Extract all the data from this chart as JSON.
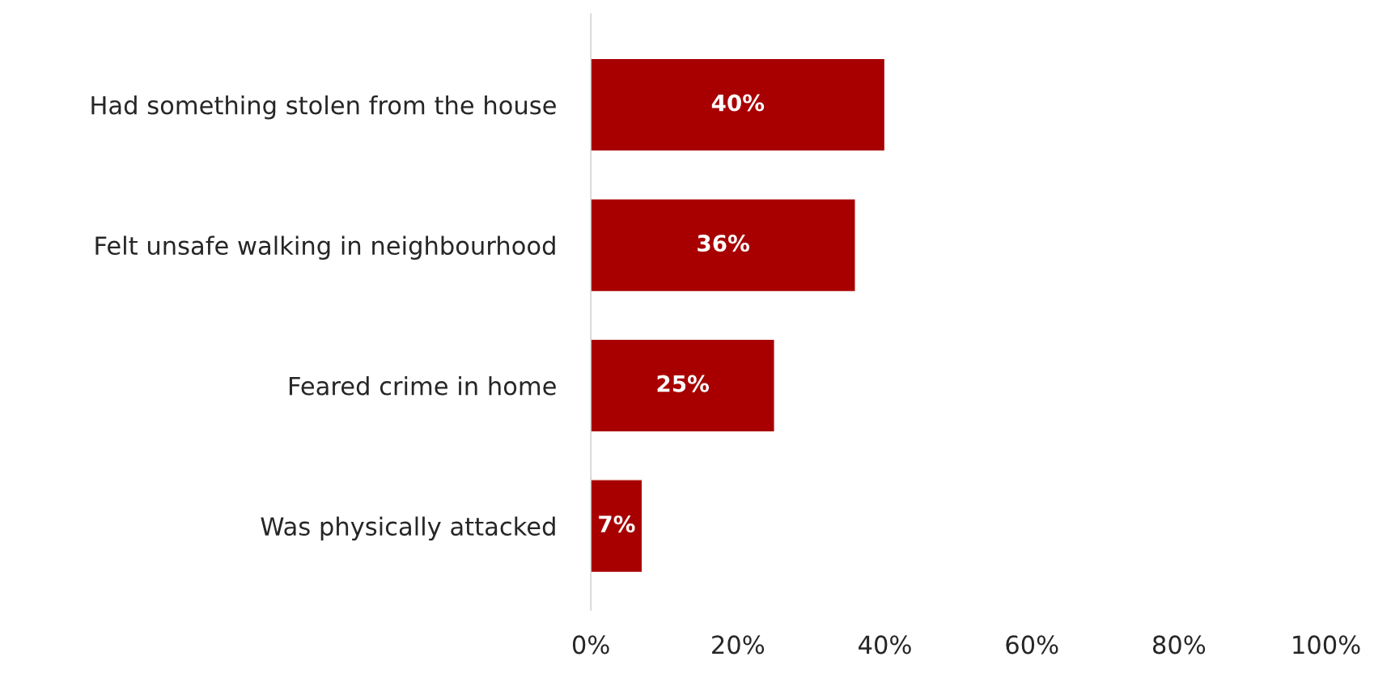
{
  "chart_data": {
    "type": "bar",
    "orientation": "horizontal",
    "categories": [
      "Had something stolen from the house",
      "Felt unsafe walking in neighbourhood",
      "Feared crime in home",
      "Was physically attacked"
    ],
    "values": [
      40,
      36,
      25,
      7
    ],
    "color": "#a80000",
    "value_labels": [
      "40%",
      "36%",
      "25%",
      "7%"
    ],
    "xlim": [
      0,
      100
    ],
    "xticks": [
      {
        "value": 0,
        "label": "0%"
      },
      {
        "value": 20,
        "label": "20%"
      },
      {
        "value": 40,
        "label": "40%"
      },
      {
        "value": 60,
        "label": "60%"
      },
      {
        "value": 80,
        "label": "80%"
      },
      {
        "value": 100,
        "label": "100%"
      }
    ],
    "grid": false,
    "legend": false
  }
}
